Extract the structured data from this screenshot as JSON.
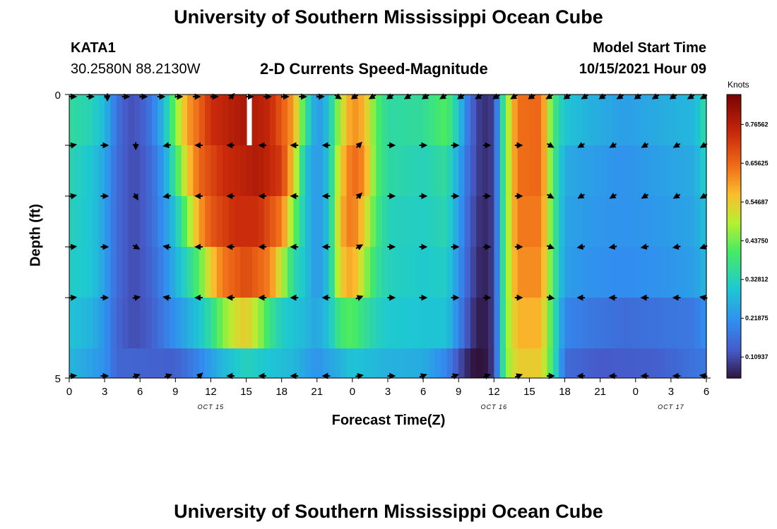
{
  "header": {
    "title": "University of Southern Mississippi Ocean Cube",
    "station_id": "KATA1",
    "coords": "30.2580N  88.2130W",
    "plot_title": "2-D Currents Speed-Magnitude",
    "model_start_label": "Model Start Time",
    "model_start_value": "10/15/2021 Hour 09"
  },
  "footer": {
    "title": "University of Southern Mississippi Ocean Cube"
  },
  "colorbar": {
    "units": "Knots",
    "tick_labels": [
      "0.76562",
      "0.65625",
      "0.54687",
      "0.43750",
      "0.32812",
      "0.21875",
      "0.10937"
    ],
    "tick_values": [
      0.76562,
      0.65625,
      0.54687,
      0.4375,
      0.32812,
      0.21875,
      0.10937
    ],
    "range": [
      0.05,
      0.85
    ]
  },
  "chart_data": {
    "type": "heatmap",
    "title": "2-D Currents Speed-Magnitude",
    "xlabel": "Forecast Time(Z)",
    "ylabel": "Depth (ft)",
    "y_tick_labels": [
      "0",
      "5"
    ],
    "ylim": [
      0,
      5
    ],
    "x_tick_labels": [
      "0",
      "3",
      "6",
      "9",
      "12",
      "15",
      "18",
      "21",
      "0",
      "3",
      "6",
      "9",
      "12",
      "15",
      "18",
      "21",
      "0",
      "3",
      "6"
    ],
    "date_labels": [
      {
        "label": "OCT 15",
        "tick_index": 4
      },
      {
        "label": "OCT 16",
        "tick_index": 12
      },
      {
        "label": "OCT 17",
        "tick_index": 17
      }
    ],
    "depth_levels": 5,
    "speed_at_hour_by_level": [
      [
        [
          0,
          0.36
        ],
        [
          2,
          0.33
        ],
        [
          3,
          0.28
        ],
        [
          4,
          0.17
        ],
        [
          5,
          0.12
        ],
        [
          6,
          0.13
        ],
        [
          7,
          0.18
        ],
        [
          8,
          0.28
        ],
        [
          9,
          0.45
        ],
        [
          10,
          0.6
        ],
        [
          11,
          0.66
        ],
        [
          12,
          0.74
        ],
        [
          15,
          0.79
        ],
        [
          17,
          0.75
        ],
        [
          19,
          0.6
        ],
        [
          20,
          0.38
        ],
        [
          21,
          0.22
        ],
        [
          22,
          0.3
        ],
        [
          23,
          0.5
        ],
        [
          24,
          0.62
        ],
        [
          25,
          0.58
        ],
        [
          26,
          0.42
        ],
        [
          27,
          0.35
        ],
        [
          30,
          0.36
        ],
        [
          32,
          0.42
        ],
        [
          33,
          0.3
        ],
        [
          34,
          0.15
        ],
        [
          35,
          0.08
        ],
        [
          36,
          0.1
        ],
        [
          37,
          0.45
        ],
        [
          38,
          0.65
        ],
        [
          40,
          0.66
        ],
        [
          41,
          0.4
        ],
        [
          42,
          0.3
        ],
        [
          44,
          0.27
        ],
        [
          47,
          0.24
        ],
        [
          50,
          0.26
        ],
        [
          53,
          0.28
        ],
        [
          54,
          0.36
        ]
      ],
      [
        [
          0,
          0.34
        ],
        [
          2,
          0.3
        ],
        [
          3,
          0.25
        ],
        [
          4,
          0.16
        ],
        [
          5,
          0.12
        ],
        [
          6,
          0.12
        ],
        [
          7,
          0.16
        ],
        [
          8,
          0.24
        ],
        [
          9,
          0.38
        ],
        [
          10,
          0.55
        ],
        [
          11,
          0.66
        ],
        [
          13,
          0.74
        ],
        [
          16,
          0.78
        ],
        [
          18,
          0.72
        ],
        [
          19,
          0.55
        ],
        [
          20,
          0.3
        ],
        [
          21,
          0.22
        ],
        [
          22,
          0.3
        ],
        [
          23,
          0.55
        ],
        [
          24,
          0.66
        ],
        [
          25,
          0.62
        ],
        [
          26,
          0.42
        ],
        [
          27,
          0.35
        ],
        [
          30,
          0.33
        ],
        [
          32,
          0.36
        ],
        [
          33,
          0.25
        ],
        [
          34,
          0.14
        ],
        [
          35,
          0.08
        ],
        [
          36,
          0.1
        ],
        [
          37,
          0.45
        ],
        [
          38,
          0.65
        ],
        [
          40,
          0.66
        ],
        [
          41,
          0.4
        ],
        [
          42,
          0.26
        ],
        [
          44,
          0.24
        ],
        [
          47,
          0.22
        ],
        [
          50,
          0.24
        ],
        [
          53,
          0.26
        ],
        [
          54,
          0.33
        ]
      ],
      [
        [
          0,
          0.33
        ],
        [
          2,
          0.3
        ],
        [
          3,
          0.24
        ],
        [
          4,
          0.16
        ],
        [
          5,
          0.12
        ],
        [
          6,
          0.12
        ],
        [
          7,
          0.16
        ],
        [
          8,
          0.22
        ],
        [
          9,
          0.3
        ],
        [
          10,
          0.45
        ],
        [
          11,
          0.6
        ],
        [
          12,
          0.68
        ],
        [
          14,
          0.74
        ],
        [
          16,
          0.74
        ],
        [
          18,
          0.64
        ],
        [
          19,
          0.45
        ],
        [
          20,
          0.3
        ],
        [
          21,
          0.22
        ],
        [
          22,
          0.3
        ],
        [
          23,
          0.58
        ],
        [
          24,
          0.65
        ],
        [
          25,
          0.55
        ],
        [
          26,
          0.4
        ],
        [
          27,
          0.33
        ],
        [
          30,
          0.32
        ],
        [
          32,
          0.34
        ],
        [
          33,
          0.24
        ],
        [
          34,
          0.13
        ],
        [
          35,
          0.07
        ],
        [
          36,
          0.1
        ],
        [
          37,
          0.45
        ],
        [
          38,
          0.64
        ],
        [
          40,
          0.64
        ],
        [
          41,
          0.4
        ],
        [
          42,
          0.25
        ],
        [
          44,
          0.23
        ],
        [
          47,
          0.22
        ],
        [
          50,
          0.23
        ],
        [
          53,
          0.25
        ],
        [
          54,
          0.3
        ]
      ],
      [
        [
          0,
          0.32
        ],
        [
          2,
          0.3
        ],
        [
          3,
          0.24
        ],
        [
          4,
          0.16
        ],
        [
          5,
          0.12
        ],
        [
          6,
          0.12
        ],
        [
          7,
          0.15
        ],
        [
          8,
          0.2
        ],
        [
          9,
          0.27
        ],
        [
          10,
          0.34
        ],
        [
          11,
          0.42
        ],
        [
          12,
          0.55
        ],
        [
          13,
          0.64
        ],
        [
          15,
          0.7
        ],
        [
          17,
          0.63
        ],
        [
          18,
          0.5
        ],
        [
          19,
          0.35
        ],
        [
          20,
          0.3
        ],
        [
          21,
          0.22
        ],
        [
          22,
          0.3
        ],
        [
          23,
          0.55
        ],
        [
          24,
          0.6
        ],
        [
          25,
          0.48
        ],
        [
          26,
          0.37
        ],
        [
          27,
          0.33
        ],
        [
          30,
          0.31
        ],
        [
          32,
          0.32
        ],
        [
          33,
          0.22
        ],
        [
          34,
          0.12
        ],
        [
          35,
          0.06
        ],
        [
          36,
          0.1
        ],
        [
          37,
          0.45
        ],
        [
          38,
          0.62
        ],
        [
          40,
          0.62
        ],
        [
          41,
          0.4
        ],
        [
          42,
          0.24
        ],
        [
          44,
          0.22
        ],
        [
          47,
          0.21
        ],
        [
          50,
          0.22
        ],
        [
          53,
          0.24
        ],
        [
          54,
          0.28
        ]
      ],
      [
        [
          0,
          0.3
        ],
        [
          2,
          0.27
        ],
        [
          3,
          0.22
        ],
        [
          4,
          0.15
        ],
        [
          5,
          0.12
        ],
        [
          6,
          0.12
        ],
        [
          7,
          0.14
        ],
        [
          8,
          0.18
        ],
        [
          9,
          0.22
        ],
        [
          10,
          0.26
        ],
        [
          11,
          0.3
        ],
        [
          12,
          0.36
        ],
        [
          13,
          0.45
        ],
        [
          14,
          0.52
        ],
        [
          15,
          0.55
        ],
        [
          16,
          0.48
        ],
        [
          17,
          0.38
        ],
        [
          18,
          0.32
        ],
        [
          19,
          0.3
        ],
        [
          20,
          0.28
        ],
        [
          21,
          0.25
        ],
        [
          22,
          0.3
        ],
        [
          23,
          0.4
        ],
        [
          24,
          0.42
        ],
        [
          25,
          0.37
        ],
        [
          26,
          0.33
        ],
        [
          27,
          0.31
        ],
        [
          30,
          0.3
        ],
        [
          32,
          0.3
        ],
        [
          33,
          0.2
        ],
        [
          34,
          0.1
        ],
        [
          35,
          0.05
        ],
        [
          36,
          0.1
        ],
        [
          37,
          0.45
        ],
        [
          38,
          0.58
        ],
        [
          40,
          0.58
        ],
        [
          41,
          0.38
        ],
        [
          42,
          0.2
        ],
        [
          44,
          0.18
        ],
        [
          47,
          0.16
        ],
        [
          50,
          0.17
        ],
        [
          53,
          0.18
        ],
        [
          54,
          0.22
        ]
      ]
    ],
    "bottom_strip_speed_at_hour": [
      [
        0,
        0.28
      ],
      [
        3,
        0.22
      ],
      [
        4,
        0.15
      ],
      [
        9,
        0.14
      ],
      [
        11,
        0.2
      ],
      [
        13,
        0.28
      ],
      [
        15,
        0.33
      ],
      [
        17,
        0.3
      ],
      [
        19,
        0.28
      ],
      [
        21,
        0.22
      ],
      [
        24,
        0.3
      ],
      [
        27,
        0.27
      ],
      [
        30,
        0.26
      ],
      [
        32,
        0.2
      ],
      [
        33,
        0.12
      ],
      [
        34,
        0.06
      ],
      [
        35,
        0.04
      ],
      [
        36,
        0.1
      ],
      [
        37,
        0.45
      ],
      [
        38,
        0.55
      ],
      [
        40,
        0.55
      ],
      [
        41,
        0.38
      ],
      [
        42,
        0.16
      ],
      [
        45,
        0.13
      ],
      [
        50,
        0.14
      ],
      [
        54,
        0.18
      ]
    ],
    "missing_cells": [
      {
        "hour": 15,
        "level": 0
      }
    ],
    "vector_rows_angle_deg": [
      [
        0,
        0,
        -90,
        0,
        0,
        0,
        0,
        0,
        0,
        45,
        0,
        0,
        0,
        0,
        0,
        -30,
        -150,
        -150,
        -150,
        -150,
        -150,
        -150,
        -150,
        -150,
        -150,
        -150,
        -150,
        -150,
        -150,
        -150,
        -150,
        -150,
        -150,
        -150,
        -150,
        -150,
        -150
      ],
      [
        10,
        0,
        -90,
        -170,
        180,
        180,
        180,
        180,
        180,
        45,
        0,
        0,
        0,
        0,
        0,
        -30,
        -150,
        -150,
        -150,
        -150,
        -150
      ],
      [
        10,
        0,
        -60,
        -170,
        180,
        180,
        180,
        180,
        180,
        45,
        0,
        0,
        0,
        0,
        0,
        -30,
        -150,
        -150,
        -150,
        -150,
        -150
      ],
      [
        5,
        0,
        -30,
        170,
        180,
        180,
        180,
        180,
        180,
        30,
        0,
        0,
        0,
        0,
        0,
        -20,
        -170,
        -170,
        -170,
        -170,
        -160
      ],
      [
        5,
        0,
        10,
        170,
        180,
        180,
        180,
        180,
        180,
        20,
        0,
        0,
        0,
        0,
        0,
        -10,
        180,
        180,
        180,
        180,
        170
      ],
      [
        5,
        0,
        20,
        20,
        45,
        180,
        180,
        180,
        180,
        10,
        0,
        20,
        20,
        20,
        20,
        0,
        180,
        180,
        180,
        180,
        170
      ]
    ]
  }
}
